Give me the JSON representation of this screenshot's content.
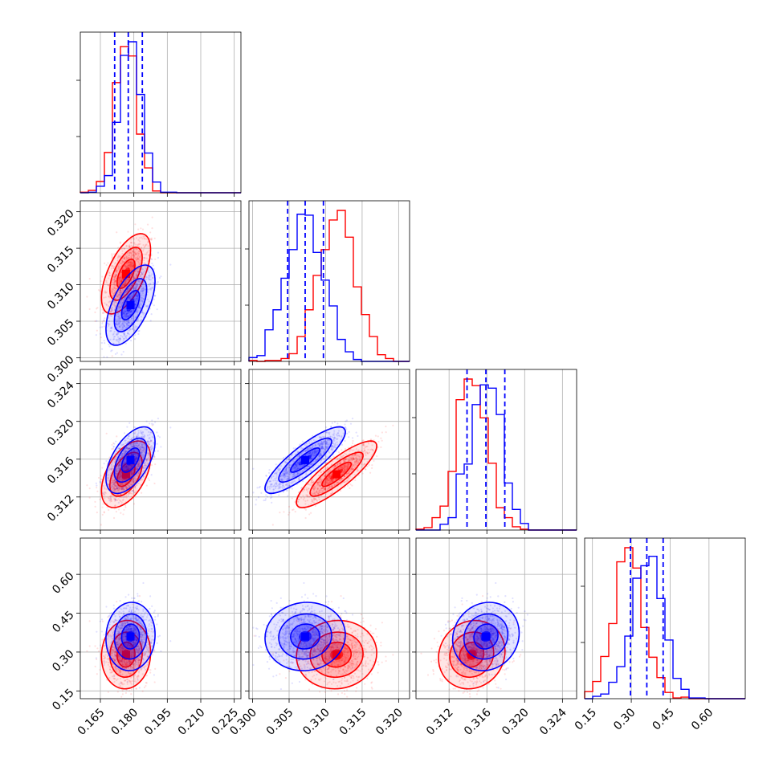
{
  "chart_data": {
    "type": "corner",
    "grid": true,
    "series": [
      {
        "color_name": "red",
        "color": "#ff0000",
        "mean": [
          0.1765,
          0.3115,
          0.3144,
          0.29
        ],
        "sd": [
          0.005,
          0.0025,
          0.0016,
          0.06
        ],
        "corr": [
          [
            1,
            0.6,
            0.5,
            0.05
          ],
          [
            0.6,
            1,
            0.85,
            0.05
          ],
          [
            0.5,
            0.85,
            1,
            0.1
          ],
          [
            0.05,
            0.05,
            0.1,
            1
          ]
        ]
      },
      {
        "color_name": "blue",
        "color": "#0000ff",
        "mean": [
          0.1785,
          0.3072,
          0.3159,
          0.36
        ],
        "sd": [
          0.005,
          0.0025,
          0.0016,
          0.06
        ],
        "corr": [
          [
            1,
            0.6,
            0.55,
            0.05
          ],
          [
            0.6,
            1,
            0.85,
            0.05
          ],
          [
            0.55,
            0.85,
            1,
            0.1
          ],
          [
            0.05,
            0.05,
            0.1,
            1
          ]
        ]
      }
    ],
    "quantile_lines": [
      [
        0.1714,
        0.1775,
        0.1838
      ],
      [
        0.3048,
        0.3072,
        0.3097
      ],
      [
        0.3139,
        0.3159,
        0.3179
      ],
      [
        0.297,
        0.36,
        0.423
      ]
    ],
    "quantile_line_color": "#0000ff",
    "params": [
      {
        "range": [
          0.156,
          0.228
        ],
        "tick_values": [
          0.165,
          0.18,
          0.195,
          0.21,
          0.225
        ],
        "tick_labels": [
          "0.165",
          "0.180",
          "0.195",
          "0.210",
          "0.225"
        ]
      },
      {
        "range": [
          0.2995,
          0.3215
        ],
        "tick_values": [
          0.3,
          0.305,
          0.31,
          0.315,
          0.32
        ],
        "tick_labels": [
          "0.300",
          "0.305",
          "0.310",
          "0.315",
          "0.320"
        ]
      },
      {
        "range": [
          0.3085,
          0.3255
        ],
        "tick_values": [
          0.312,
          0.316,
          0.32,
          0.324
        ],
        "tick_labels": [
          "0.312",
          "0.316",
          "0.320",
          "0.324"
        ]
      },
      {
        "range": [
          0.12,
          0.74
        ],
        "tick_values": [
          0.15,
          0.3,
          0.45,
          0.6
        ],
        "tick_labels": [
          "0.15",
          "0.30",
          "0.45",
          "0.60"
        ]
      }
    ]
  }
}
